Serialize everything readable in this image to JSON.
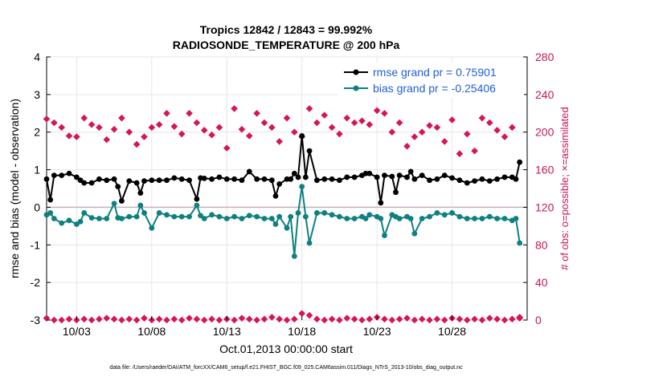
{
  "chart_data": {
    "type": "line",
    "title_line1": "Tropics 12842 / 12843 = 99.992%",
    "title_line2": "RADIOSONDE_TEMPERATURE @ 200 hPa",
    "xlabel": "Oct.01,2013 00:00:00 start",
    "ylabel": "rmse and bias (model - observation)",
    "y2label": "# of obs: o=possible; ×=assimilated",
    "footer": "data file: /Users/raeder/DAI/ATM_forcXX/CAM6_setup/f.e21.FHIST_BGC.f09_025.CAM6assim.011/Diags_NTrS_2013-10/obs_diag_output.nc",
    "xlim": [
      1,
      33
    ],
    "ylim": [
      -3,
      4
    ],
    "y2lim": [
      0,
      280
    ],
    "x_ticks": [
      3,
      8,
      13,
      18,
      23,
      28
    ],
    "x_tick_labels": [
      "10/03",
      "10/08",
      "10/13",
      "10/18",
      "10/23",
      "10/28"
    ],
    "y_ticks": [
      -3,
      -2,
      -1,
      0,
      1,
      2,
      3,
      4
    ],
    "y_tick_labels": [
      "-3",
      "-2",
      "-1",
      "0",
      "1",
      "2",
      "3",
      "4"
    ],
    "y2_ticks": [
      0,
      40,
      80,
      120,
      160,
      200,
      240,
      280
    ],
    "y2_tick_labels": [
      "0",
      "40",
      "80",
      "120",
      "160",
      "200",
      "240",
      "280"
    ],
    "legend": {
      "position": "top-right",
      "rmse_label": "rmse grand pr = 0.75901",
      "bias_label": "bias grand pr = -0.25406"
    },
    "colors": {
      "rmse": "#000000",
      "bias": "#0e8080",
      "obs": "#d6145a",
      "zero_line": "#c8b4b4"
    },
    "x": [
      1,
      1.25,
      1.5,
      2,
      2.5,
      3,
      3.25,
      3.5,
      4,
      4.5,
      5,
      5.5,
      5.75,
      6,
      6.5,
      7,
      7.25,
      7.5,
      8,
      8.5,
      9,
      9.5,
      10,
      10.5,
      11,
      11.25,
      11.5,
      12,
      12.5,
      13,
      13.5,
      14,
      14.5,
      15,
      15.5,
      16,
      16.25,
      16.5,
      17,
      17.25,
      17.5,
      17.75,
      18,
      18.25,
      18.5,
      19,
      19.5,
      20,
      20.5,
      21,
      21.5,
      22,
      22.25,
      22.5,
      23,
      23.25,
      23.5,
      24,
      24.25,
      24.5,
      25,
      25.25,
      25.5,
      26,
      26.5,
      27,
      27.5,
      28,
      28.5,
      29,
      29.5,
      30,
      30.5,
      31,
      31.5,
      32,
      32.25,
      32.5
    ],
    "series": [
      {
        "name": "rmse",
        "values": [
          0.75,
          0.2,
          0.85,
          0.85,
          0.9,
          0.8,
          0.72,
          0.65,
          0.65,
          0.75,
          0.72,
          0.75,
          0.55,
          0.17,
          0.7,
          0.65,
          0.38,
          0.7,
          0.72,
          0.72,
          0.72,
          0.78,
          0.75,
          0.72,
          0.22,
          0.78,
          0.77,
          0.75,
          0.8,
          0.75,
          0.75,
          0.72,
          0.95,
          0.75,
          0.75,
          0.72,
          0.3,
          0.62,
          0.75,
          0.75,
          0.9,
          0.8,
          1.9,
          0.8,
          1.5,
          0.72,
          0.75,
          0.75,
          0.72,
          0.8,
          0.8,
          0.85,
          0.9,
          0.9,
          0.8,
          0.12,
          0.85,
          0.82,
          0.4,
          0.85,
          0.8,
          0.95,
          0.75,
          0.85,
          0.72,
          0.75,
          0.85,
          0.78,
          0.72,
          0.65,
          0.7,
          0.75,
          0.7,
          0.75,
          0.8,
          0.8,
          0.75,
          1.2
        ]
      },
      {
        "name": "bias",
        "values": [
          -0.2,
          -0.15,
          -0.3,
          -0.42,
          -0.35,
          -0.45,
          -0.38,
          -0.15,
          -0.28,
          -0.3,
          -0.3,
          0.1,
          -0.28,
          -0.3,
          -0.25,
          -0.25,
          0.05,
          -0.15,
          -0.55,
          -0.15,
          -0.2,
          -0.25,
          -0.25,
          -0.25,
          0.05,
          -0.22,
          -0.3,
          -0.2,
          -0.25,
          -0.3,
          -0.25,
          -0.3,
          -0.22,
          -0.25,
          -0.3,
          -0.3,
          -0.45,
          -0.25,
          -0.55,
          -0.25,
          -1.3,
          -0.15,
          0.55,
          -0.25,
          -0.95,
          -0.15,
          -0.15,
          -0.2,
          -0.25,
          -0.3,
          -0.3,
          -0.25,
          -0.3,
          -0.2,
          -0.25,
          -0.3,
          -0.75,
          -0.2,
          -0.25,
          -0.3,
          -0.25,
          -0.3,
          -0.7,
          -0.3,
          -0.25,
          -0.15,
          -0.2,
          -0.15,
          -0.25,
          -0.3,
          -0.3,
          -0.3,
          -0.25,
          -0.3,
          -0.3,
          -0.35,
          -0.3,
          -0.95
        ]
      }
    ],
    "obs_possible_x": [
      1,
      1.5,
      2,
      2.5,
      3,
      3.5,
      4,
      4.5,
      5,
      5.5,
      6,
      6.5,
      7,
      7.5,
      8,
      8.5,
      9,
      9.5,
      10,
      10.5,
      11,
      11.5,
      12,
      12.5,
      13,
      13.5,
      14,
      14.5,
      15,
      15.5,
      16,
      16.5,
      17,
      17.5,
      18,
      18.5,
      19,
      19.5,
      20,
      20.5,
      21,
      21.5,
      22,
      22.5,
      23,
      23.5,
      24,
      24.5,
      25,
      25.5,
      26,
      26.5,
      27,
      27.5,
      28,
      28.5,
      29,
      29.5,
      30,
      30.5,
      31,
      31.5,
      32,
      32.5
    ],
    "obs_possible": [
      214,
      210,
      205,
      196,
      195,
      215,
      208,
      205,
      192,
      203,
      215,
      200,
      187,
      195,
      205,
      208,
      220,
      206,
      198,
      220,
      210,
      202,
      197,
      205,
      183,
      225,
      203,
      196,
      220,
      210,
      205,
      190,
      215,
      200,
      195,
      225,
      210,
      218,
      205,
      198,
      215,
      210,
      212,
      208,
      223,
      220,
      200,
      210,
      185,
      195,
      200,
      207,
      205,
      190,
      213,
      177,
      198,
      180,
      215,
      210,
      202,
      195,
      205,
      2
    ],
    "obs_assimilated": [
      2,
      0,
      0,
      1,
      0,
      1,
      0,
      1,
      2,
      1,
      0,
      1,
      0,
      2,
      0,
      1,
      0,
      1,
      0,
      2,
      1,
      0,
      1,
      0,
      1,
      0,
      2,
      1,
      0,
      1,
      3,
      1,
      0,
      1,
      7,
      5,
      1,
      0,
      1,
      0,
      2,
      1,
      0,
      1,
      3,
      1,
      0,
      1,
      2,
      0,
      1,
      0,
      1,
      0,
      2,
      1,
      0,
      1,
      0,
      2,
      1,
      0,
      1,
      3
    ]
  }
}
